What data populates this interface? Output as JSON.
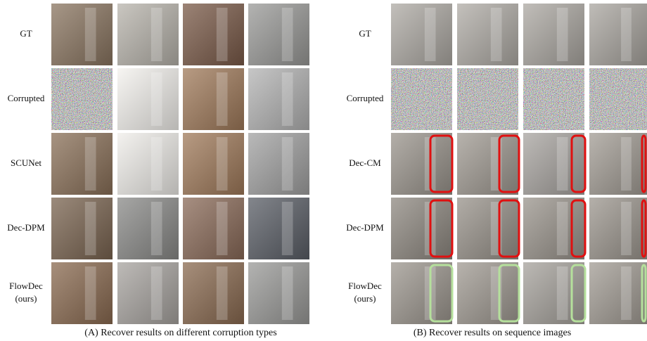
{
  "panels": [
    {
      "caption": "(A) Recover results on different corruption types",
      "row_labels": [
        [
          "GT"
        ],
        [
          "Corrupted"
        ],
        [
          "SCUNet"
        ],
        [
          "Dec-DPM"
        ],
        [
          "FlowDec",
          "(ours)"
        ]
      ]
    },
    {
      "caption": "(B) Recover results on sequence images",
      "row_labels": [
        [
          "GT"
        ],
        [
          "Corrupted"
        ],
        [
          "Dec-CM"
        ],
        [
          "Dec-DPM"
        ],
        [
          "FlowDec",
          "(ours)"
        ]
      ]
    }
  ]
}
